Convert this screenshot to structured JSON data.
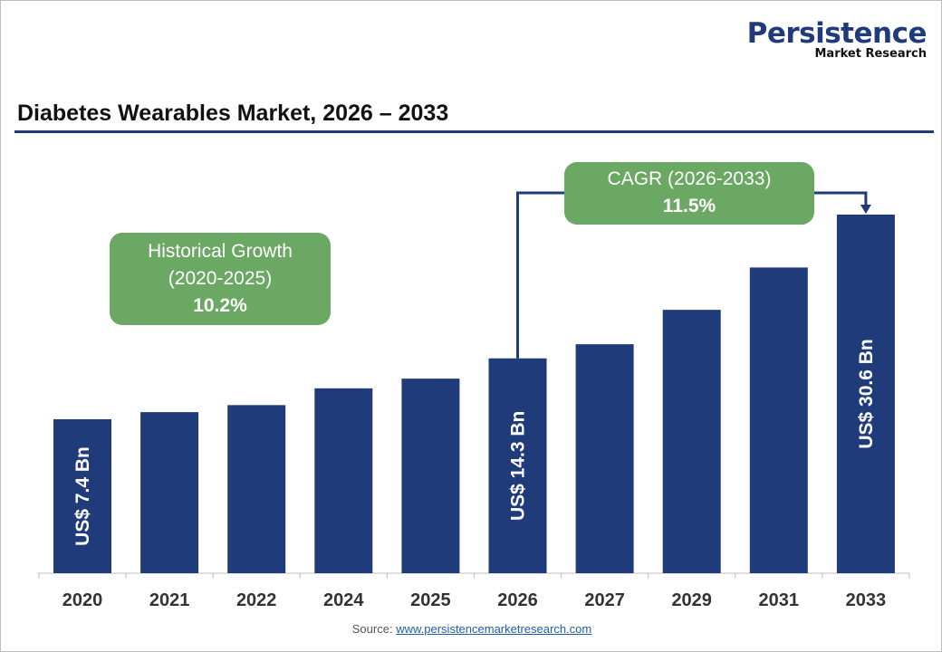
{
  "logo": {
    "line1": "Persistence",
    "line2": "Market Research"
  },
  "chart_data": {
    "type": "bar",
    "title": "Diabetes Wearables Market, 2026 – 2033",
    "categories": [
      "2020",
      "2021",
      "2022",
      "2024",
      "2025",
      "2026",
      "2027",
      "2029",
      "2031",
      "2033"
    ],
    "values": [
      7.4,
      8.2,
      9.0,
      10.9,
      12.0,
      14.3,
      15.9,
      19.8,
      24.6,
      30.6
    ],
    "unit": "US$ Bn",
    "data_labels": {
      "2020": "US$ 7.4 Bn",
      "2026": "US$ 14.3 Bn",
      "2033": "US$ 30.6 Bn"
    },
    "grid": false,
    "bar_color": "#1f3b7a",
    "annotations": {
      "historical": {
        "line1": "Historical Growth",
        "line2": "(2020-2025)",
        "value": "10.2%"
      },
      "cagr": {
        "line1": "CAGR (2026-2033)",
        "value": "11.5%"
      }
    }
  },
  "source": {
    "label": "Source:",
    "link": "www.persistencemarketresearch.com"
  }
}
